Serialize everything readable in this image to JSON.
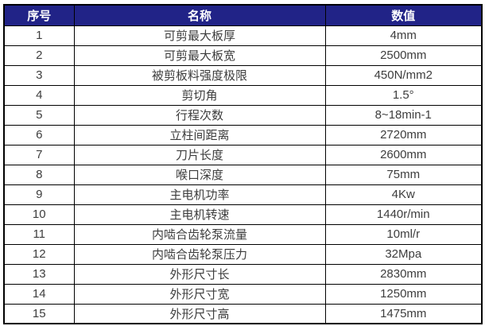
{
  "table": {
    "title": "specification-table",
    "headers": [
      "序号",
      "名称",
      "数值"
    ],
    "rows": [
      {
        "no": "1",
        "name": "可剪最大板厚",
        "value": "4mm"
      },
      {
        "no": "2",
        "name": "可剪最大板宽",
        "value": "2500mm"
      },
      {
        "no": "3",
        "name": "被剪板料强度极限",
        "value": "450N/mm2"
      },
      {
        "no": "4",
        "name": "剪切角",
        "value": "1.5°"
      },
      {
        "no": "5",
        "name": "行程次数",
        "value": "8~18min-1"
      },
      {
        "no": "6",
        "name": "立柱间距离",
        "value": "2720mm"
      },
      {
        "no": "7",
        "name": "刀片长度",
        "value": "2600mm"
      },
      {
        "no": "8",
        "name": "喉口深度",
        "value": "75mm"
      },
      {
        "no": "9",
        "name": "主电机功率",
        "value": "4Kw"
      },
      {
        "no": "10",
        "name": "主电机转速",
        "value": "1440r/min"
      },
      {
        "no": "11",
        "name": "内啮合齿轮泵流量",
        "value": "10ml/r"
      },
      {
        "no": "12",
        "name": "内啮合齿轮泵压力",
        "value": "32Mpa"
      },
      {
        "no": "13",
        "name": "外形尺寸长",
        "value": "2830mm"
      },
      {
        "no": "14",
        "name": "外形尺寸宽",
        "value": "1250mm"
      },
      {
        "no": "15",
        "name": "外形尺寸高",
        "value": "1475mm"
      }
    ],
    "colors": {
      "header_bg": "#212387",
      "header_text": "#ffffff",
      "body_text": "#3d3d3d",
      "border": "#000000"
    }
  }
}
